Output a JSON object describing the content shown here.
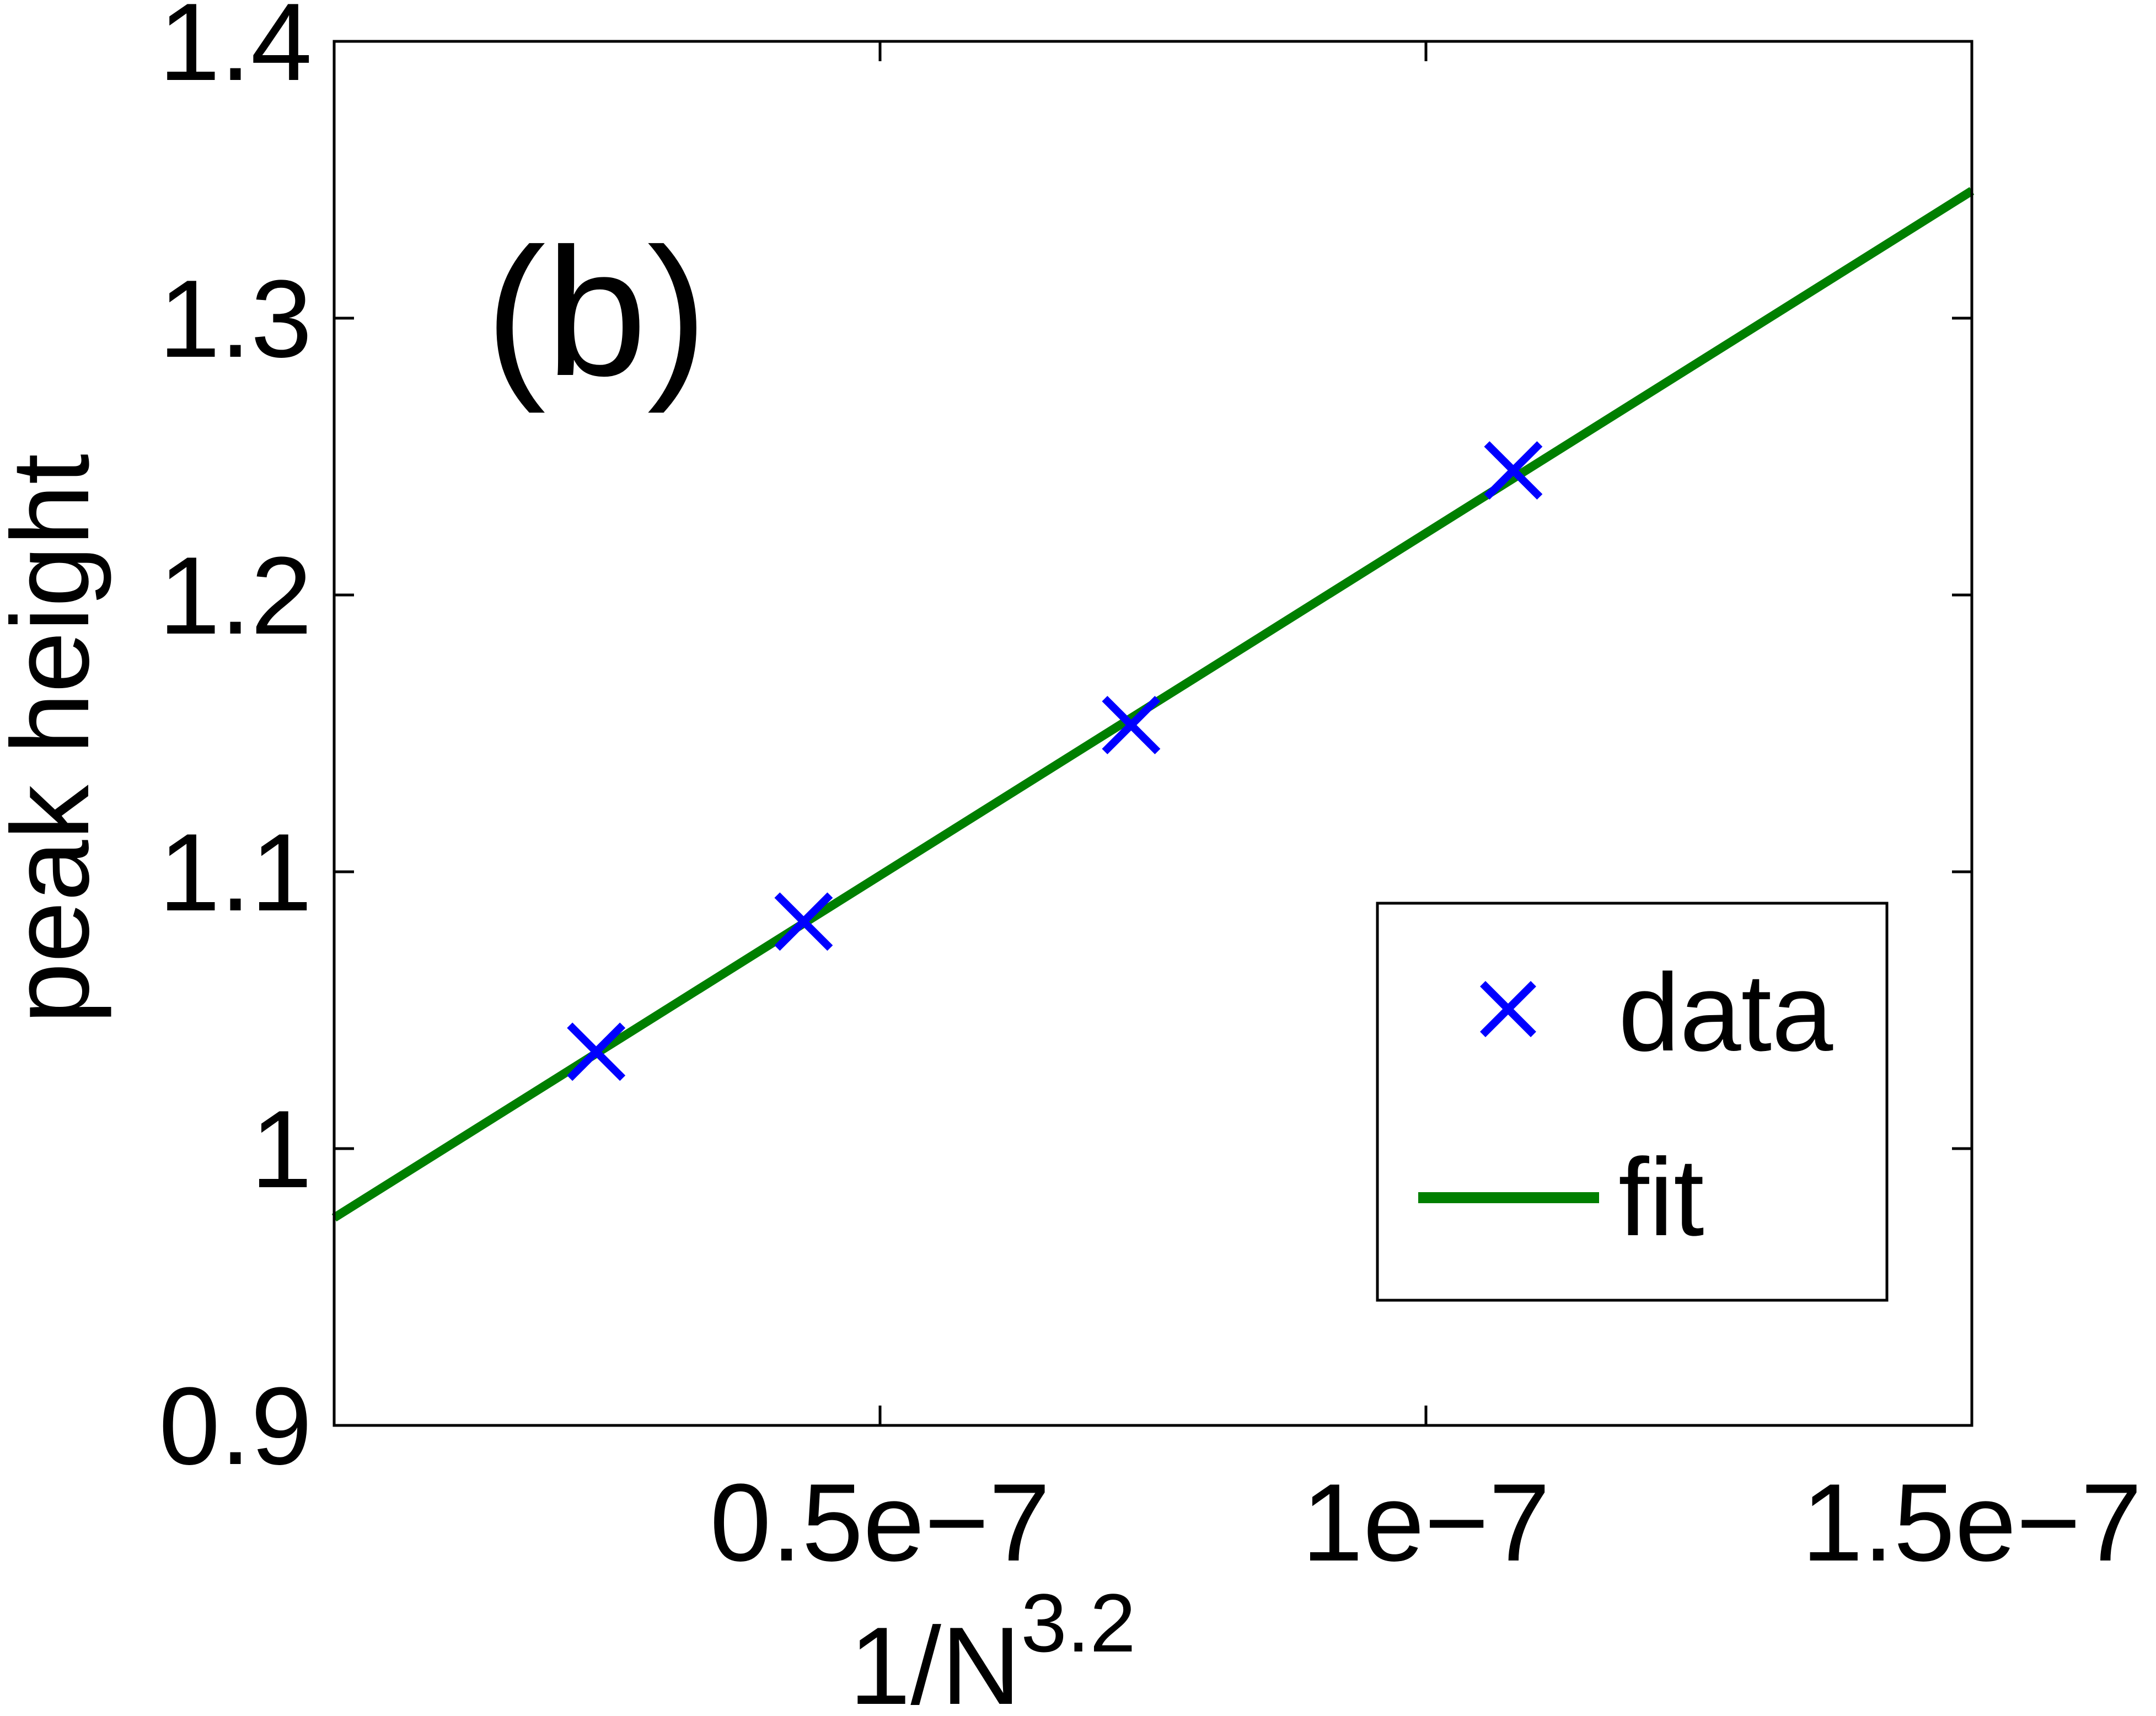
{
  "chart_data": {
    "type": "scatter",
    "panel_label": "(b)",
    "title": "",
    "xlabel": {
      "base": "1/N",
      "exponent": "3.2"
    },
    "ylabel": "peak height",
    "xlim": [
      0,
      1.5e-07
    ],
    "ylim": [
      0.9,
      1.4
    ],
    "xticks": [
      {
        "value": 5e-08,
        "label": "0.5e−7"
      },
      {
        "value": 1e-07,
        "label": "1e−7"
      },
      {
        "value": 1.5e-07,
        "label": "1.5e−7"
      }
    ],
    "yticks": [
      {
        "value": 0.9,
        "label": "0.9"
      },
      {
        "value": 1.0,
        "label": "1"
      },
      {
        "value": 1.1,
        "label": "1.1"
      },
      {
        "value": 1.2,
        "label": "1.2"
      },
      {
        "value": 1.3,
        "label": "1.3"
      },
      {
        "value": 1.4,
        "label": "1.4"
      }
    ],
    "series": [
      {
        "name": "data",
        "kind": "markers",
        "marker": "x",
        "color": "#0000ff",
        "points": [
          {
            "x": 2.4e-08,
            "y": 1.035
          },
          {
            "x": 4.3e-08,
            "y": 1.082
          },
          {
            "x": 7.3e-08,
            "y": 1.153
          },
          {
            "x": 1.08e-07,
            "y": 1.245
          }
        ]
      },
      {
        "name": "fit",
        "kind": "line",
        "color": "#007f00",
        "points": [
          {
            "x": 0,
            "y": 0.975
          },
          {
            "x": 1.5e-07,
            "y": 1.346
          }
        ]
      }
    ],
    "grid": false,
    "legend": {
      "position": "bottom-right",
      "entries": [
        "data",
        "fit"
      ]
    }
  }
}
